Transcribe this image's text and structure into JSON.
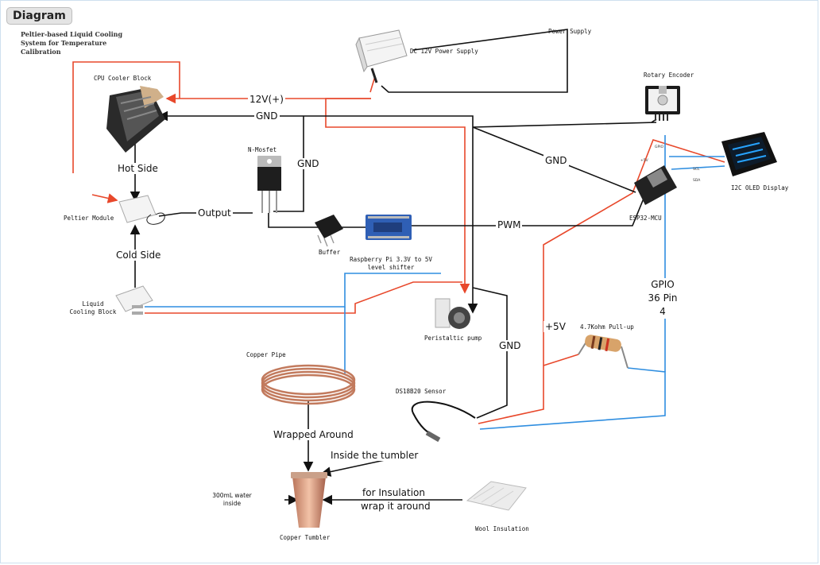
{
  "tab_label": "Diagram",
  "title": "Peltier-based Liquid Cooling System for Temperature Calibration",
  "labels": {
    "power_supply": "Power Supply",
    "dc_supply": "DC 12V Power Supply",
    "rotary_encoder": "Rotary Encoder",
    "cpu_cooler": "CPU Cooler Block",
    "v12": "12V(+)",
    "gnd_top": "GND",
    "nmosfet": "N-Mosfet",
    "gnd_mosfet": "GND",
    "gnd_diag": "GND",
    "hot_side": "Hot Side",
    "i2c_oled": "I2C OLED Display",
    "output": "Output",
    "peltier": "Peltier Module",
    "esp32": "ESP32-MCU",
    "pwm": "PWM",
    "buffer": "Buffer",
    "cold_side": "Cold Side",
    "level_shifter": "Raspberry Pi 3.3V to 5V level shifter",
    "gpio": "GPIO 36 Pin 4",
    "liquid_block": "Liquid Cooling Block",
    "peristaltic": "Peristaltic pump",
    "v5": "+5V",
    "pullup": "4.7Kohm Pull-up",
    "gnd_sensor": "GND",
    "copper_pipe": "Copper Pipe",
    "ds18b20": "DS18B20 Sensor",
    "wrapped": "Wrapped Around",
    "inside_tumbler": "Inside the tumbler",
    "water": "300mL water inside",
    "insulation_a": "for Insulation",
    "insulation_b": "wrap it around",
    "wool": "Wool Insulation",
    "tumbler": "Copper Tumbler"
  },
  "colors": {
    "red": "#e8482b",
    "blue": "#2f8ee0",
    "black": "#111111"
  }
}
